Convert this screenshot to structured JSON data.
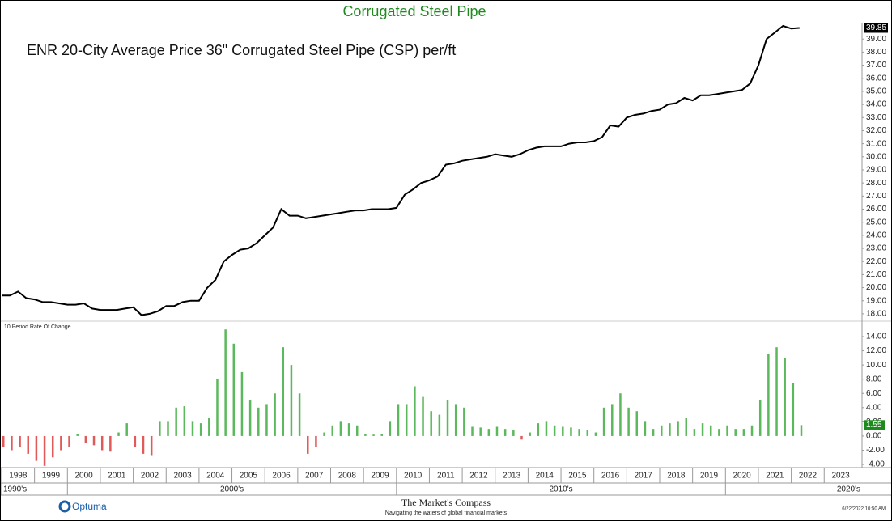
{
  "chart_data": [
    {
      "type": "line",
      "title": "Corrugated Steel Pipe",
      "subtitle": "ENR 20-City Average Price 36\" Corrugated Steel Pipe (CSP) per/ft",
      "color": "#000000",
      "xlim": [
        1998,
        2024.15
      ],
      "ylim": [
        17.5,
        40.25
      ],
      "x": [
        1998,
        1998.25,
        1998.5,
        1998.75,
        1999,
        1999.25,
        1999.5,
        1999.75,
        2000,
        2000.25,
        2000.5,
        2000.75,
        2001,
        2001.25,
        2001.5,
        2001.75,
        2002,
        2002.25,
        2002.5,
        2002.75,
        2003,
        2003.25,
        2003.5,
        2003.75,
        2004,
        2004.25,
        2004.5,
        2004.75,
        2005,
        2005.25,
        2005.5,
        2005.75,
        2006,
        2006.25,
        2006.5,
        2006.75,
        2007,
        2007.25,
        2007.5,
        2007.75,
        2008,
        2008.25,
        2008.5,
        2008.75,
        2009,
        2009.25,
        2009.5,
        2009.75,
        2010,
        2010.25,
        2010.5,
        2010.75,
        2011,
        2011.25,
        2011.5,
        2011.75,
        2012,
        2012.25,
        2012.5,
        2012.75,
        2013,
        2013.25,
        2013.5,
        2013.75,
        2014,
        2014.25,
        2014.5,
        2014.75,
        2015,
        2015.25,
        2015.5,
        2015.75,
        2016,
        2016.25,
        2016.5,
        2016.75,
        2017,
        2017.25,
        2017.5,
        2017.75,
        2018,
        2018.25,
        2018.5,
        2018.75,
        2019,
        2019.25,
        2019.5,
        2019.75,
        2020,
        2020.25,
        2020.5,
        2020.75,
        2021,
        2021.25,
        2021.5,
        2021.75,
        2022,
        2022.25
      ],
      "values": [
        19.4,
        19.4,
        19.7,
        19.2,
        19.1,
        18.9,
        18.9,
        18.8,
        18.7,
        18.7,
        18.8,
        18.4,
        18.3,
        18.3,
        18.3,
        18.4,
        18.5,
        17.9,
        18.0,
        18.2,
        18.6,
        18.6,
        18.9,
        19.0,
        19.0,
        20.0,
        20.6,
        22.0,
        22.5,
        22.9,
        23.0,
        23.4,
        24.0,
        24.6,
        26.0,
        25.5,
        25.5,
        25.3,
        25.4,
        25.5,
        25.6,
        25.7,
        25.8,
        25.9,
        25.9,
        26.0,
        26.0,
        26.0,
        26.1,
        27.1,
        27.5,
        28.0,
        28.2,
        28.5,
        29.4,
        29.5,
        29.7,
        29.8,
        29.9,
        30.0,
        30.2,
        30.1,
        30.0,
        30.2,
        30.5,
        30.7,
        30.8,
        30.8,
        30.8,
        31.0,
        31.1,
        31.1,
        31.2,
        31.5,
        32.4,
        32.3,
        33.0,
        33.2,
        33.3,
        33.5,
        33.6,
        34.0,
        34.1,
        34.5,
        34.3,
        34.7,
        34.7,
        34.8,
        34.9,
        35.0,
        35.1,
        35.6,
        37.0,
        39.0,
        39.5,
        40.0,
        39.8,
        39.85
      ],
      "yticks": [
        {
          "value": 18,
          "label": "18.00"
        },
        {
          "value": 19,
          "label": "19.00"
        },
        {
          "value": 20,
          "label": "20.00"
        },
        {
          "value": 21,
          "label": "21.00"
        },
        {
          "value": 22,
          "label": "22.00"
        },
        {
          "value": 23,
          "label": "23.00"
        },
        {
          "value": 24,
          "label": "24.00"
        },
        {
          "value": 25,
          "label": "25.00"
        },
        {
          "value": 26,
          "label": "26.00"
        },
        {
          "value": 27,
          "label": "27.00"
        },
        {
          "value": 28,
          "label": "28.00"
        },
        {
          "value": 29,
          "label": "29.00"
        },
        {
          "value": 30,
          "label": "30.00"
        },
        {
          "value": 31,
          "label": "31.00"
        },
        {
          "value": 32,
          "label": "32.00"
        },
        {
          "value": 33,
          "label": "33.00"
        },
        {
          "value": 34,
          "label": "34.00"
        },
        {
          "value": 35,
          "label": "35.00"
        },
        {
          "value": 36,
          "label": "36.00"
        },
        {
          "value": 37,
          "label": "37.00"
        },
        {
          "value": 38,
          "label": "38.00"
        },
        {
          "value": 39,
          "label": "39.00"
        }
      ]
    },
    {
      "type": "bar",
      "title": "10 Period Rate Of Change",
      "positive_color": "#5cb85c",
      "negative_color": "#e05a5a",
      "xlim": [
        1998,
        2024.15
      ],
      "ylim": [
        -4.45,
        16.05
      ],
      "x": [
        1998,
        1998.25,
        1998.5,
        1998.75,
        1999,
        1999.25,
        1999.5,
        1999.75,
        2000,
        2000.25,
        2000.5,
        2000.75,
        2001,
        2001.25,
        2001.5,
        2001.75,
        2002,
        2002.25,
        2002.5,
        2002.75,
        2003,
        2003.25,
        2003.5,
        2003.75,
        2004,
        2004.25,
        2004.5,
        2004.75,
        2005,
        2005.25,
        2005.5,
        2005.75,
        2006,
        2006.25,
        2006.5,
        2006.75,
        2007,
        2007.25,
        2007.5,
        2007.75,
        2008,
        2008.25,
        2008.5,
        2008.75,
        2009,
        2009.25,
        2009.5,
        2009.75,
        2010,
        2010.25,
        2010.5,
        2010.75,
        2011,
        2011.25,
        2011.5,
        2011.75,
        2012,
        2012.25,
        2012.5,
        2012.75,
        2013,
        2013.25,
        2013.5,
        2013.75,
        2014,
        2014.25,
        2014.5,
        2014.75,
        2015,
        2015.25,
        2015.5,
        2015.75,
        2016,
        2016.25,
        2016.5,
        2016.75,
        2017,
        2017.25,
        2017.5,
        2017.75,
        2018,
        2018.25,
        2018.5,
        2018.75,
        2019,
        2019.25,
        2019.5,
        2019.75,
        2020,
        2020.25,
        2020.5,
        2020.75,
        2021,
        2021.25,
        2021.5,
        2021.75,
        2022,
        2022.25
      ],
      "values": [
        -1.5,
        -2.0,
        -1.5,
        -2.5,
        -3.5,
        -4.2,
        -3.0,
        -2.0,
        -1.5,
        0.3,
        -1.0,
        -1.3,
        -2.0,
        -2.2,
        0.5,
        1.8,
        -1.5,
        -2.5,
        -2.8,
        2.0,
        2.0,
        4.0,
        4.2,
        2.0,
        1.8,
        2.5,
        8.0,
        15.0,
        13.0,
        9.0,
        5.0,
        4.0,
        4.5,
        6.0,
        12.5,
        10.0,
        6.0,
        -2.5,
        -1.5,
        0.5,
        1.5,
        2.0,
        1.8,
        1.5,
        0.3,
        0.2,
        0.3,
        2.0,
        4.5,
        4.5,
        7.0,
        5.5,
        3.5,
        3.0,
        5.0,
        4.5,
        4.0,
        1.3,
        1.2,
        1.0,
        1.3,
        1.0,
        0.8,
        -0.5,
        0.5,
        1.8,
        2.0,
        1.5,
        1.3,
        1.2,
        1.0,
        0.8,
        0.5,
        4.0,
        4.5,
        6.0,
        4.0,
        3.5,
        2.0,
        1.0,
        1.5,
        1.8,
        2.0,
        2.5,
        1.0,
        1.8,
        1.5,
        1.0,
        1.5,
        1.0,
        1.0,
        1.5,
        5.0,
        11.5,
        12.5,
        11.0,
        7.5,
        1.55
      ],
      "yticks": [
        {
          "value": -4,
          "label": "-4.00"
        },
        {
          "value": -2,
          "label": "-2.00"
        },
        {
          "value": 0,
          "label": "0.00"
        },
        {
          "value": 2,
          "label": "2.00"
        },
        {
          "value": 4,
          "label": "4.00"
        },
        {
          "value": 6,
          "label": "6.00"
        },
        {
          "value": 8,
          "label": "8.00"
        },
        {
          "value": 10,
          "label": "10.00"
        },
        {
          "value": 12,
          "label": "12.00"
        },
        {
          "value": 14,
          "label": "14.00"
        }
      ],
      "xticks": [
        1998,
        1999,
        2000,
        2001,
        2002,
        2003,
        2004,
        2005,
        2006,
        2007,
        2008,
        2009,
        2010,
        2011,
        2012,
        2013,
        2014,
        2015,
        2016,
        2017,
        2018,
        2019,
        2020,
        2021,
        2022,
        2023
      ],
      "decades": [
        {
          "label": "1990's",
          "start": 1998,
          "end": 2000
        },
        {
          "label": "2000's",
          "start": 2000,
          "end": 2010
        },
        {
          "label": "2010's",
          "start": 2010,
          "end": 2020
        },
        {
          "label": "2020's",
          "start": 2020,
          "end": 2024.15
        }
      ]
    }
  ],
  "footer": {
    "logo": "Optuma",
    "brand": "The Market's Compass",
    "tagline": "Navigating the waters of global financial markets",
    "timestamp": "6/22/2022 10:50 AM"
  }
}
